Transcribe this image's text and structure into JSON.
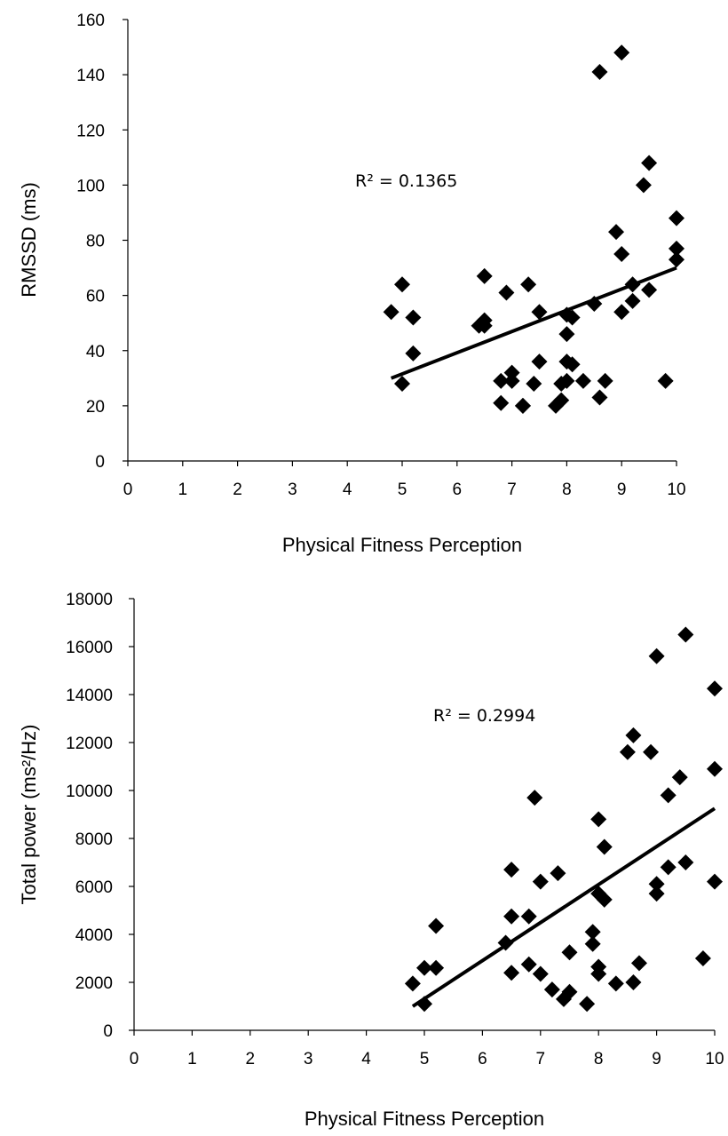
{
  "chart_data": [
    {
      "type": "scatter",
      "xlabel": "Physical Fitness Perception",
      "ylabel": "RMSSD (ms)",
      "xlim": [
        0,
        10
      ],
      "ylim": [
        0,
        160
      ],
      "xticks": [
        "0",
        "1",
        "2",
        "3",
        "4",
        "5",
        "6",
        "7",
        "8",
        "9",
        "10"
      ],
      "yticks": [
        "0",
        "20",
        "40",
        "60",
        "80",
        "100",
        "120",
        "140",
        "160"
      ],
      "grid": false,
      "annotation": "R² = 0.1365",
      "trendline": {
        "x": [
          4.8,
          10
        ],
        "y": [
          30,
          70
        ]
      },
      "points": [
        {
          "x": 4.8,
          "y": 54
        },
        {
          "x": 5.0,
          "y": 64
        },
        {
          "x": 5.0,
          "y": 28
        },
        {
          "x": 5.2,
          "y": 52
        },
        {
          "x": 5.2,
          "y": 39
        },
        {
          "x": 6.4,
          "y": 49
        },
        {
          "x": 6.5,
          "y": 67
        },
        {
          "x": 6.5,
          "y": 51
        },
        {
          "x": 6.5,
          "y": 49
        },
        {
          "x": 6.8,
          "y": 29
        },
        {
          "x": 6.8,
          "y": 21
        },
        {
          "x": 6.9,
          "y": 61
        },
        {
          "x": 7.0,
          "y": 32
        },
        {
          "x": 7.0,
          "y": 29
        },
        {
          "x": 7.2,
          "y": 20
        },
        {
          "x": 7.2,
          "y": 20
        },
        {
          "x": 7.3,
          "y": 64
        },
        {
          "x": 7.4,
          "y": 28
        },
        {
          "x": 7.5,
          "y": 54
        },
        {
          "x": 7.5,
          "y": 36
        },
        {
          "x": 7.8,
          "y": 20
        },
        {
          "x": 7.9,
          "y": 28
        },
        {
          "x": 7.9,
          "y": 22
        },
        {
          "x": 8.0,
          "y": 53
        },
        {
          "x": 8.0,
          "y": 46
        },
        {
          "x": 8.0,
          "y": 36
        },
        {
          "x": 8.0,
          "y": 29
        },
        {
          "x": 8.1,
          "y": 52
        },
        {
          "x": 8.1,
          "y": 35
        },
        {
          "x": 8.3,
          "y": 29
        },
        {
          "x": 8.5,
          "y": 57
        },
        {
          "x": 8.6,
          "y": 141
        },
        {
          "x": 8.6,
          "y": 23
        },
        {
          "x": 8.7,
          "y": 29
        },
        {
          "x": 8.9,
          "y": 83
        },
        {
          "x": 9.0,
          "y": 148
        },
        {
          "x": 9.0,
          "y": 75
        },
        {
          "x": 9.0,
          "y": 54
        },
        {
          "x": 9.2,
          "y": 64
        },
        {
          "x": 9.2,
          "y": 58
        },
        {
          "x": 9.4,
          "y": 100
        },
        {
          "x": 9.5,
          "y": 108
        },
        {
          "x": 9.5,
          "y": 62
        },
        {
          "x": 9.8,
          "y": 29
        },
        {
          "x": 10.0,
          "y": 88
        },
        {
          "x": 10.0,
          "y": 77
        },
        {
          "x": 10.0,
          "y": 73
        }
      ]
    },
    {
      "type": "scatter",
      "xlabel": "Physical Fitness Perception",
      "ylabel": "Total power (ms²/Hz)",
      "xlim": [
        0,
        10
      ],
      "ylim": [
        0,
        18000
      ],
      "xticks": [
        "0",
        "1",
        "2",
        "3",
        "4",
        "5",
        "6",
        "7",
        "8",
        "9",
        "10"
      ],
      "yticks": [
        "0",
        "2000",
        "4000",
        "6000",
        "8000",
        "10000",
        "12000",
        "14000",
        "16000",
        "18000"
      ],
      "grid": false,
      "annotation": "R² = 0.2994",
      "trendline": {
        "x": [
          4.8,
          10
        ],
        "y": [
          1000,
          9250
        ]
      },
      "points": [
        {
          "x": 4.8,
          "y": 1950
        },
        {
          "x": 5.0,
          "y": 2600
        },
        {
          "x": 5.0,
          "y": 1100
        },
        {
          "x": 5.2,
          "y": 4350
        },
        {
          "x": 5.2,
          "y": 2600
        },
        {
          "x": 6.4,
          "y": 3650
        },
        {
          "x": 6.5,
          "y": 6700
        },
        {
          "x": 6.5,
          "y": 4750
        },
        {
          "x": 6.5,
          "y": 2400
        },
        {
          "x": 6.8,
          "y": 4750
        },
        {
          "x": 6.8,
          "y": 2750
        },
        {
          "x": 6.9,
          "y": 9700
        },
        {
          "x": 7.0,
          "y": 6200
        },
        {
          "x": 7.0,
          "y": 2350
        },
        {
          "x": 7.2,
          "y": 1700
        },
        {
          "x": 7.3,
          "y": 6550
        },
        {
          "x": 7.4,
          "y": 1300
        },
        {
          "x": 7.5,
          "y": 3250
        },
        {
          "x": 7.5,
          "y": 1600
        },
        {
          "x": 7.8,
          "y": 1100
        },
        {
          "x": 7.9,
          "y": 4100
        },
        {
          "x": 7.9,
          "y": 3600
        },
        {
          "x": 8.0,
          "y": 8800
        },
        {
          "x": 8.0,
          "y": 5700
        },
        {
          "x": 8.0,
          "y": 2650
        },
        {
          "x": 8.0,
          "y": 2350
        },
        {
          "x": 8.1,
          "y": 7650
        },
        {
          "x": 8.1,
          "y": 5450
        },
        {
          "x": 8.3,
          "y": 1950
        },
        {
          "x": 8.5,
          "y": 11600
        },
        {
          "x": 8.6,
          "y": 12300
        },
        {
          "x": 8.6,
          "y": 2000
        },
        {
          "x": 8.7,
          "y": 2800
        },
        {
          "x": 8.9,
          "y": 11600
        },
        {
          "x": 9.0,
          "y": 15600
        },
        {
          "x": 9.0,
          "y": 6100
        },
        {
          "x": 9.0,
          "y": 5700
        },
        {
          "x": 9.2,
          "y": 9800
        },
        {
          "x": 9.2,
          "y": 6800
        },
        {
          "x": 9.4,
          "y": 10550
        },
        {
          "x": 9.5,
          "y": 16500
        },
        {
          "x": 9.5,
          "y": 7000
        },
        {
          "x": 9.8,
          "y": 3000
        },
        {
          "x": 10.0,
          "y": 14250
        },
        {
          "x": 10.0,
          "y": 10900
        },
        {
          "x": 10.0,
          "y": 6200
        }
      ]
    }
  ]
}
